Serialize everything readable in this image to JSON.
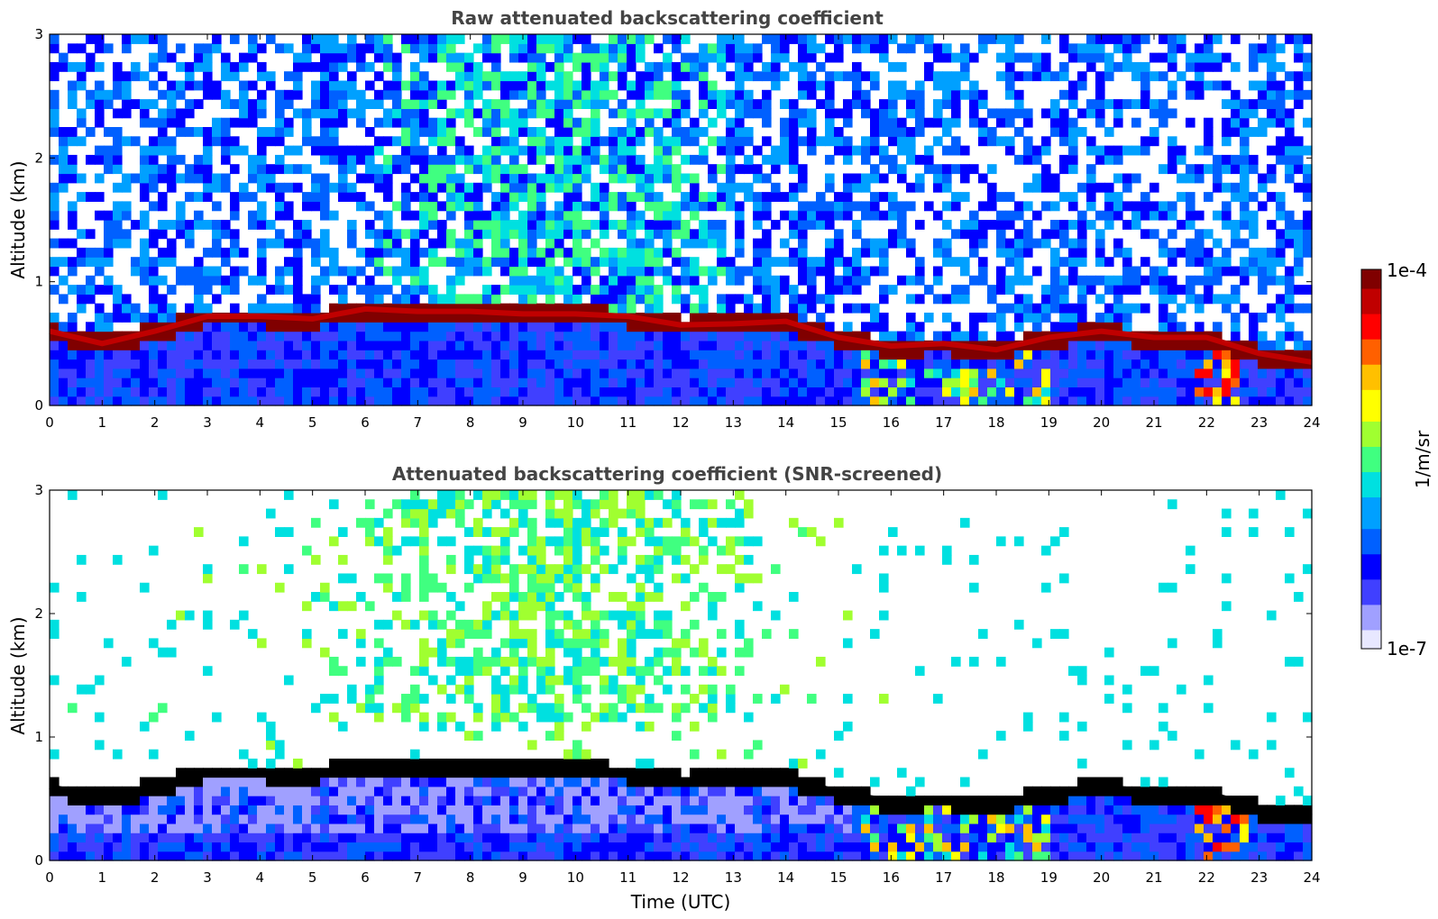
{
  "chart_data": [
    {
      "type": "heatmap",
      "title": "Raw attenuated backscattering coefficient",
      "xlabel": "",
      "ylabel": "Altitude (km)",
      "xlim": [
        0,
        24
      ],
      "ylim": [
        0,
        3
      ],
      "x_ticks": [
        0,
        1,
        2,
        3,
        4,
        5,
        6,
        7,
        8,
        9,
        10,
        11,
        12,
        13,
        14,
        15,
        16,
        17,
        18,
        19,
        20,
        21,
        22,
        23,
        24
      ],
      "y_ticks": [
        0,
        1,
        2,
        3
      ],
      "layer_top_km": {
        "time_utc": [
          0,
          1,
          2,
          3,
          4,
          5,
          6,
          7,
          8,
          9,
          10,
          11,
          12,
          13,
          14,
          15,
          16,
          17,
          18,
          19,
          20,
          21,
          22,
          23,
          24
        ],
        "altitude_km": [
          0.6,
          0.5,
          0.6,
          0.72,
          0.72,
          0.7,
          0.78,
          0.76,
          0.76,
          0.74,
          0.74,
          0.72,
          0.65,
          0.66,
          0.68,
          0.55,
          0.48,
          0.5,
          0.45,
          0.55,
          0.6,
          0.55,
          0.55,
          0.42,
          0.35
        ]
      }
    },
    {
      "type": "heatmap",
      "title": "Attenuated backscattering coefficient (SNR-screened)",
      "xlabel": "Time (UTC)",
      "ylabel": "Altitude (km)",
      "xlim": [
        0,
        24
      ],
      "ylim": [
        0,
        3
      ],
      "x_ticks": [
        0,
        1,
        2,
        3,
        4,
        5,
        6,
        7,
        8,
        9,
        10,
        11,
        12,
        13,
        14,
        15,
        16,
        17,
        18,
        19,
        20,
        21,
        22,
        23,
        24
      ],
      "y_ticks": [
        0,
        1,
        2,
        3
      ],
      "layer_top_km": {
        "time_utc": [
          0,
          1,
          2,
          3,
          4,
          5,
          6,
          7,
          8,
          9,
          10,
          11,
          12,
          13,
          14,
          15,
          16,
          17,
          18,
          19,
          20,
          21,
          22,
          23,
          24
        ],
        "altitude_km": [
          0.6,
          0.5,
          0.6,
          0.72,
          0.72,
          0.7,
          0.78,
          0.76,
          0.76,
          0.74,
          0.74,
          0.72,
          0.65,
          0.66,
          0.68,
          0.55,
          0.48,
          0.5,
          0.45,
          0.55,
          0.6,
          0.55,
          0.55,
          0.42,
          0.35
        ]
      }
    }
  ],
  "colorbar": {
    "max_label": "1e-4",
    "min_label": "1e-7",
    "unit_label": "1/m/sr",
    "colors": [
      "#e8e8ff",
      "#a0a0ff",
      "#4040ff",
      "#0000ff",
      "#0060ff",
      "#00a0ff",
      "#00e0e0",
      "#40ff80",
      "#a0ff30",
      "#ffff00",
      "#ffc000",
      "#ff6000",
      "#ff0000",
      "#c00000",
      "#800000"
    ]
  }
}
